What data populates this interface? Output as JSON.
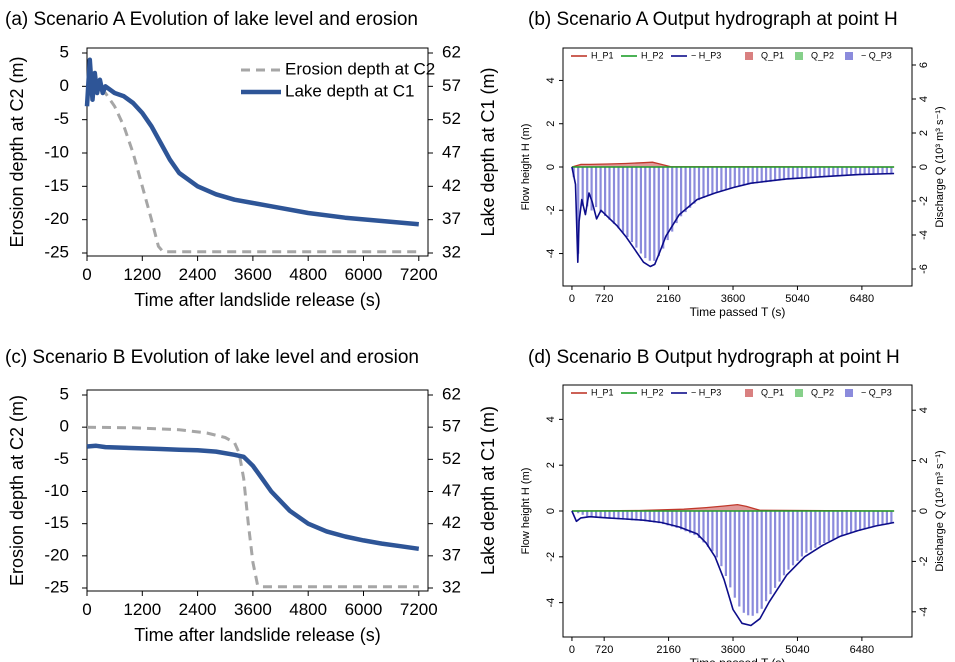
{
  "colors": {
    "erosion": "#a6a6a6",
    "lake": "#2e5597",
    "hp1": "#c0392b",
    "hp2": "#1e9e2a",
    "hp3": "#0d0d8a",
    "qp1": "#d98080",
    "qp2": "#86d08a",
    "qp3": "#8b8bdc"
  },
  "chart_data": [
    {
      "type": "line",
      "title": "(a) Scenario A Evolution of lake level and erosion",
      "xlabel": "Time after landslide release (s)",
      "ylabel_left": "Erosion depth at C2 (m)",
      "ylabel_right": "Lake depth at C1 (m)",
      "xlim": [
        0,
        7400
      ],
      "ylim_left": [
        -25,
        5
      ],
      "ylim_right": [
        32,
        62
      ],
      "x_ticks": [
        "0",
        "1200",
        "2400",
        "3600",
        "4800",
        "6000",
        "7200"
      ],
      "y_ticks_left": [
        "-25",
        "-20",
        "-15",
        "-10",
        "-5",
        "0",
        "5"
      ],
      "y_ticks_right": [
        "32",
        "37",
        "42",
        "47",
        "52",
        "57",
        "62"
      ],
      "legend": [
        "Erosion depth at C2",
        "Lake depth at C1"
      ],
      "legend_position": "top-right",
      "series": [
        {
          "name": "Erosion depth at C2",
          "axis": "left",
          "style": "dashed",
          "x": [
            0,
            200,
            400,
            600,
            800,
            1000,
            1200,
            1400,
            1550,
            1650,
            2000,
            4000,
            6000,
            7200
          ],
          "y": [
            0,
            0,
            -1,
            -3,
            -6,
            -10,
            -15,
            -20,
            -24,
            -24.8,
            -24.8,
            -24.8,
            -24.8,
            -24.8
          ]
        },
        {
          "name": "Lake depth at C1",
          "axis": "right",
          "style": "solid",
          "x": [
            0,
            60,
            120,
            170,
            220,
            280,
            340,
            400,
            600,
            800,
            1000,
            1200,
            1400,
            1600,
            1800,
            2000,
            2400,
            2800,
            3200,
            3600,
            4000,
            4800,
            5600,
            6400,
            7200
          ],
          "y": [
            54,
            61,
            55,
            59,
            56,
            58,
            56,
            57,
            56,
            55.5,
            54.5,
            53,
            51,
            48.5,
            46,
            44,
            42,
            40.8,
            40,
            39.5,
            39,
            38,
            37.3,
            36.8,
            36.3
          ]
        }
      ]
    },
    {
      "type": "bar",
      "title": "(b) Scenario A Output hydrograph at point H",
      "xlabel": "Time passed T (s)",
      "ylabel_left": "Flow height H (m)",
      "ylabel_right": "Discharge Q (10³ m³ s⁻¹)",
      "xlim": [
        -200,
        7600
      ],
      "ylim_left": [
        -5.5,
        5.5
      ],
      "ylim_right": [
        -7,
        7
      ],
      "x_ticks": [
        "0",
        "720",
        "2160",
        "3600",
        "5040",
        "6480"
      ],
      "y_ticks_left": [
        "-4",
        "-2",
        "0",
        "2",
        "4"
      ],
      "y_ticks_right": [
        "-6",
        "-4",
        "-2",
        "0",
        "2",
        "4",
        "6"
      ],
      "legend": [
        "H_P1",
        "H_P2",
        "− H_P3",
        "Q_P1",
        "Q_P2",
        "− Q_P3"
      ],
      "series": [
        {
          "name": "H_P1",
          "axis": "left",
          "x": [
            0,
            200,
            400,
            800,
            1200,
            1600,
            1800,
            2000,
            2200,
            7200
          ],
          "y": [
            0,
            0.12,
            0.12,
            0.14,
            0.16,
            0.2,
            0.22,
            0.12,
            0.02,
            0
          ]
        },
        {
          "name": "H_P2",
          "axis": "left",
          "x": [
            0,
            7200
          ],
          "y": [
            0,
            0
          ]
        },
        {
          "name": "− H_P3",
          "axis": "left",
          "x": [
            0,
            80,
            130,
            160,
            220,
            300,
            380,
            450,
            550,
            650,
            800,
            1000,
            1200,
            1400,
            1600,
            1750,
            1850,
            1950,
            2100,
            2400,
            2800,
            3200,
            3600,
            4000,
            4800,
            5600,
            6400,
            7200
          ],
          "y": [
            0,
            -0.8,
            -4.4,
            -2.5,
            -1.5,
            -2.2,
            -1.2,
            -1.6,
            -2.4,
            -2.0,
            -2.3,
            -2.7,
            -3.2,
            -3.8,
            -4.4,
            -4.6,
            -4.5,
            -4.0,
            -3.2,
            -2.2,
            -1.5,
            -1.2,
            -0.95,
            -0.75,
            -0.55,
            -0.45,
            -0.35,
            -0.3
          ]
        },
        {
          "name": "Q_P1",
          "axis": "right",
          "x": [
            0,
            7200
          ],
          "y": [
            0,
            0
          ]
        },
        {
          "name": "Q_P2",
          "axis": "right",
          "x": [
            0,
            7200
          ],
          "y": [
            0,
            0
          ]
        },
        {
          "name": "− Q_P3",
          "axis": "right",
          "x": [
            0,
            100,
            150,
            200,
            300,
            400,
            500,
            600,
            800,
            1000,
            1200,
            1400,
            1600,
            1800,
            1900,
            2000,
            2200,
            2400,
            2800,
            3200,
            3600,
            4000,
            4800,
            5600,
            6400,
            7200
          ],
          "y": [
            0,
            -1.5,
            -6,
            -2.5,
            -2.0,
            -2.8,
            -2.2,
            -2.6,
            -3.0,
            -3.5,
            -4.0,
            -4.6,
            -5.3,
            -5.6,
            -5.4,
            -5.0,
            -4.0,
            -3.0,
            -2.0,
            -1.5,
            -1.2,
            -1.0,
            -0.75,
            -0.55,
            -0.45,
            -0.38
          ]
        }
      ]
    },
    {
      "type": "line",
      "title": "(c) Scenario B Evolution of lake level and erosion",
      "xlabel": "Time after landslide release (s)",
      "ylabel_left": "Erosion depth at C2 (m)",
      "ylabel_right": "Lake depth at C1 (m)",
      "xlim": [
        0,
        7400
      ],
      "ylim_left": [
        -25,
        5
      ],
      "ylim_right": [
        32,
        62
      ],
      "x_ticks": [
        "0",
        "1200",
        "2400",
        "3600",
        "4800",
        "6000",
        "7200"
      ],
      "y_ticks_left": [
        "-25",
        "-20",
        "-15",
        "-10",
        "-5",
        "0",
        "5"
      ],
      "y_ticks_right": [
        "32",
        "37",
        "42",
        "47",
        "52",
        "57",
        "62"
      ],
      "series": [
        {
          "name": "Erosion depth at C2",
          "axis": "left",
          "style": "dashed",
          "x": [
            0,
            1000,
            2000,
            2600,
            3000,
            3200,
            3300,
            3400,
            3500,
            3600,
            3700,
            3800,
            4500,
            6000,
            7200
          ],
          "y": [
            0,
            -0.1,
            -0.4,
            -0.9,
            -1.6,
            -2.4,
            -4,
            -8,
            -15,
            -21,
            -24.5,
            -24.8,
            -24.8,
            -24.8,
            -24.8
          ]
        },
        {
          "name": "Lake depth at C1",
          "axis": "right",
          "style": "solid",
          "x": [
            0,
            200,
            400,
            800,
            1200,
            1600,
            2000,
            2400,
            2800,
            3200,
            3400,
            3600,
            3800,
            4000,
            4400,
            4800,
            5200,
            5600,
            6000,
            6400,
            6800,
            7200
          ],
          "y": [
            54,
            54.1,
            53.9,
            53.8,
            53.7,
            53.6,
            53.5,
            53.4,
            53.2,
            52.7,
            52.4,
            51,
            49,
            47,
            44,
            42,
            40.8,
            40,
            39.4,
            38.9,
            38.5,
            38.1
          ]
        }
      ]
    },
    {
      "type": "bar",
      "title": "(d) Scenario B Output hydrograph at point H",
      "xlabel": "Time passed T (s)",
      "ylabel_left": "Flow height H (m)",
      "ylabel_right": "Discharge Q (10³ m³ s⁻¹)",
      "xlim": [
        -200,
        7600
      ],
      "ylim_left": [
        -5.5,
        5.5
      ],
      "ylim_right": [
        -5,
        5
      ],
      "x_ticks": [
        "0",
        "720",
        "2160",
        "3600",
        "5040",
        "6480"
      ],
      "y_ticks_left": [
        "-4",
        "-2",
        "0",
        "2",
        "4"
      ],
      "y_ticks_right": [
        "-4",
        "-2",
        "0",
        "2",
        "4"
      ],
      "legend": [
        "H_P1",
        "H_P2",
        "− H_P3",
        "Q_P1",
        "Q_P2",
        "− Q_P3"
      ],
      "series": [
        {
          "name": "H_P1",
          "axis": "left",
          "x": [
            0,
            1500,
            2500,
            3000,
            3400,
            3700,
            3900,
            4200,
            7200
          ],
          "y": [
            0,
            0.02,
            0.08,
            0.15,
            0.22,
            0.28,
            0.2,
            0.03,
            0
          ]
        },
        {
          "name": "H_P2",
          "axis": "left",
          "x": [
            0,
            7200
          ],
          "y": [
            0,
            0
          ]
        },
        {
          "name": "− H_P3",
          "axis": "left",
          "x": [
            0,
            100,
            200,
            400,
            800,
            1200,
            1600,
            2000,
            2400,
            2800,
            3000,
            3200,
            3400,
            3600,
            3800,
            4000,
            4200,
            4400,
            4800,
            5200,
            5600,
            6000,
            6400,
            6800,
            7200
          ],
          "y": [
            0,
            -0.45,
            -0.3,
            -0.25,
            -0.3,
            -0.35,
            -0.4,
            -0.5,
            -0.7,
            -1.0,
            -1.4,
            -2.0,
            -3.0,
            -4.3,
            -4.9,
            -5.0,
            -4.7,
            -4.0,
            -2.8,
            -2.0,
            -1.5,
            -1.1,
            -0.85,
            -0.65,
            -0.5
          ]
        },
        {
          "name": "Q_P1",
          "axis": "right",
          "x": [
            0,
            7200
          ],
          "y": [
            0,
            0
          ]
        },
        {
          "name": "Q_P2",
          "axis": "right",
          "x": [
            0,
            7200
          ],
          "y": [
            0,
            0
          ]
        },
        {
          "name": "− Q_P3",
          "axis": "right",
          "x": [
            0,
            400,
            800,
            1200,
            1600,
            2000,
            2400,
            2800,
            3200,
            3400,
            3600,
            3800,
            4000,
            4200,
            4400,
            4800,
            5200,
            5600,
            6000,
            6400,
            6800,
            7200
          ],
          "y": [
            0,
            -0.25,
            -0.3,
            -0.35,
            -0.4,
            -0.5,
            -0.7,
            -1.0,
            -1.7,
            -2.4,
            -3.3,
            -4.0,
            -4.2,
            -4.0,
            -3.4,
            -2.4,
            -1.7,
            -1.3,
            -1.0,
            -0.8,
            -0.6,
            -0.45
          ]
        }
      ]
    }
  ]
}
